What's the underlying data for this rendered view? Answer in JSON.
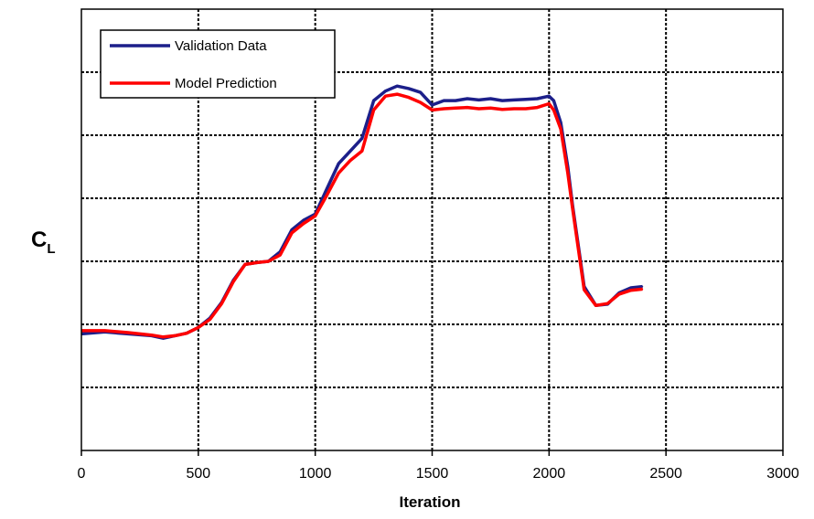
{
  "chart_data": {
    "type": "line",
    "title": "",
    "xlabel": "Iteration",
    "ylabel": "C",
    "ylabel_subscript": "L",
    "xlim": [
      0,
      3000
    ],
    "ylim": [
      0,
      7
    ],
    "x_ticks": [
      0,
      500,
      1000,
      1500,
      2000,
      2500,
      3000
    ],
    "x_tick_labels": [
      "0",
      "500",
      "1000",
      "1500",
      "2000",
      "2500",
      "3000"
    ],
    "y_gridlines": [
      1,
      2,
      3,
      4,
      5,
      6
    ],
    "grid": true,
    "legend_position": "top-left",
    "series": [
      {
        "name": "Validation Data",
        "color": "#1c1f8a",
        "x": [
          0,
          100,
          200,
          300,
          350,
          400,
          450,
          500,
          550,
          600,
          650,
          700,
          750,
          800,
          850,
          900,
          950,
          1000,
          1050,
          1100,
          1150,
          1200,
          1250,
          1300,
          1350,
          1400,
          1450,
          1500,
          1550,
          1600,
          1650,
          1700,
          1750,
          1800,
          1850,
          1900,
          1950,
          2000,
          2020,
          2050,
          2080,
          2100,
          2150,
          2200,
          2250,
          2300,
          2350,
          2400
        ],
        "y": [
          1.85,
          1.88,
          1.85,
          1.82,
          1.78,
          1.82,
          1.86,
          1.95,
          2.1,
          2.35,
          2.7,
          2.95,
          2.98,
          3.0,
          3.15,
          3.5,
          3.65,
          3.75,
          4.15,
          4.55,
          4.75,
          4.95,
          5.55,
          5.7,
          5.78,
          5.74,
          5.68,
          5.48,
          5.55,
          5.55,
          5.58,
          5.56,
          5.58,
          5.55,
          5.56,
          5.57,
          5.58,
          5.62,
          5.55,
          5.2,
          4.5,
          3.9,
          2.6,
          2.3,
          2.32,
          2.5,
          2.58,
          2.6
        ]
      },
      {
        "name": "Model Prediction",
        "color": "#ff0000",
        "x": [
          0,
          100,
          200,
          300,
          350,
          400,
          450,
          500,
          550,
          600,
          650,
          700,
          750,
          800,
          850,
          900,
          950,
          1000,
          1050,
          1100,
          1150,
          1200,
          1250,
          1300,
          1350,
          1400,
          1450,
          1500,
          1550,
          1600,
          1650,
          1700,
          1750,
          1800,
          1850,
          1900,
          1950,
          2000,
          2020,
          2050,
          2080,
          2100,
          2150,
          2200,
          2250,
          2300,
          2350,
          2400
        ],
        "y": [
          1.9,
          1.9,
          1.87,
          1.83,
          1.8,
          1.82,
          1.86,
          1.95,
          2.08,
          2.33,
          2.68,
          2.95,
          2.98,
          3.0,
          3.1,
          3.45,
          3.6,
          3.72,
          4.05,
          4.4,
          4.6,
          4.75,
          5.4,
          5.62,
          5.65,
          5.6,
          5.52,
          5.4,
          5.42,
          5.43,
          5.44,
          5.42,
          5.43,
          5.41,
          5.42,
          5.42,
          5.44,
          5.5,
          5.4,
          5.1,
          4.4,
          3.85,
          2.55,
          2.3,
          2.33,
          2.48,
          2.54,
          2.56
        ]
      }
    ]
  }
}
